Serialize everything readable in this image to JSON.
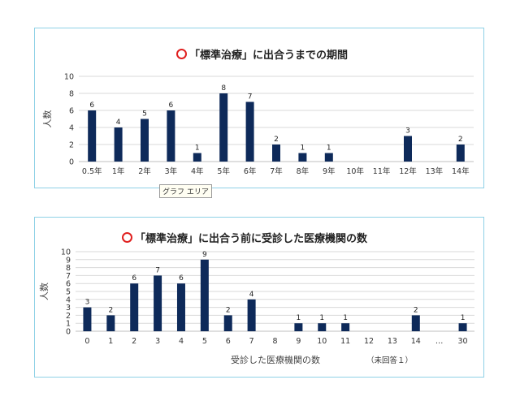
{
  "tooltip": "グラフ エリア",
  "chart_data": [
    {
      "type": "bar",
      "title": "「標準治療」に出合うまでの期間",
      "ylabel": "人数",
      "xlabel": "",
      "ylim": [
        0,
        10
      ],
      "yticks": [
        0,
        2,
        4,
        6,
        8,
        10
      ],
      "grid": true,
      "color": "#0e2a5a",
      "categories": [
        "0.5年",
        "1年",
        "2年",
        "3年",
        "4年",
        "5年",
        "6年",
        "7年",
        "8年",
        "9年",
        "10年",
        "11年",
        "12年",
        "13年",
        "14年"
      ],
      "values": [
        6,
        4,
        5,
        6,
        1,
        8,
        7,
        2,
        1,
        1,
        0,
        0,
        3,
        0,
        2
      ]
    },
    {
      "type": "bar",
      "title": "「標準治療」に出合う前に受診した医療機関の数",
      "ylabel": "人数",
      "xlabel": "受診した医療機関の数",
      "note": "（未回答１）",
      "ylim": [
        0,
        10
      ],
      "yticks": [
        0,
        1,
        2,
        3,
        4,
        5,
        6,
        7,
        8,
        9,
        10
      ],
      "grid": true,
      "color": "#0e2a5a",
      "categories": [
        "0",
        "1",
        "2",
        "3",
        "4",
        "5",
        "6",
        "7",
        "8",
        "9",
        "10",
        "11",
        "12",
        "13",
        "14",
        "…",
        "30"
      ],
      "values": [
        3,
        2,
        6,
        7,
        6,
        9,
        2,
        4,
        0,
        1,
        1,
        1,
        0,
        0,
        2,
        0,
        1
      ]
    }
  ]
}
